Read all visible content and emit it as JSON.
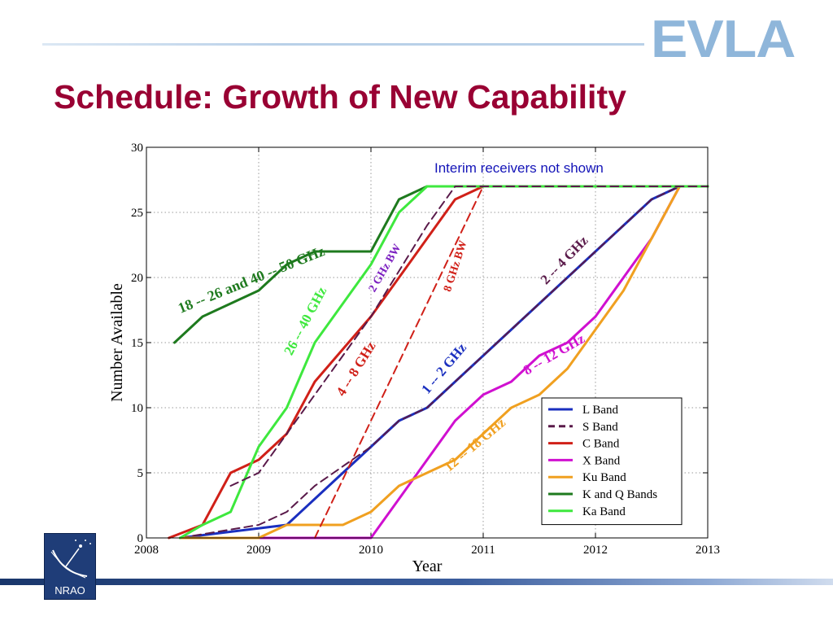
{
  "slide": {
    "title": "Schedule: Growth of New Capability",
    "logo_text": "EVLA",
    "footer_logo_text": "NRAO"
  },
  "chart_data": {
    "type": "line",
    "xlabel": "Year",
    "ylabel": "Number Available",
    "xlim": [
      2008,
      2013
    ],
    "ylim": [
      0,
      30
    ],
    "xticks": [
      2008,
      2009,
      2010,
      2011,
      2012,
      2013
    ],
    "yticks": [
      0,
      5,
      10,
      15,
      20,
      25,
      30
    ],
    "grid": true,
    "legend_position": "bottom-right",
    "note": "Interim receivers not shown",
    "series": [
      {
        "name": "L Band",
        "color": "#1a2fbf",
        "dash": "solid",
        "x": [
          2008.3,
          2009.25,
          2010.0,
          2010.25,
          2010.5,
          2011.0,
          2011.5,
          2012.0,
          2012.5,
          2012.75,
          2013.0
        ],
        "y": [
          0,
          1,
          7,
          9,
          10,
          14,
          18,
          22,
          26,
          27,
          27
        ]
      },
      {
        "name": "S Band",
        "color": "#5a1a4a",
        "dash": "dashed",
        "x": [
          2008.3,
          2009.0,
          2009.25,
          2009.5,
          2010.0,
          2010.25,
          2010.5,
          2011.0,
          2011.5,
          2012.0,
          2012.5,
          2012.75,
          2013.0
        ],
        "y": [
          0,
          1,
          2,
          4,
          7,
          9,
          10,
          14,
          18,
          22,
          26,
          27,
          27
        ]
      },
      {
        "name": "C Band",
        "color": "#d02018",
        "dash": "solid",
        "x": [
          2008.2,
          2008.5,
          2008.75,
          2009.0,
          2009.25,
          2009.5,
          2010.0,
          2010.5,
          2010.75,
          2011.0,
          2013.0
        ],
        "y": [
          0,
          1,
          5,
          6,
          8,
          12,
          17,
          23,
          26,
          27,
          27
        ]
      },
      {
        "name": "X Band",
        "color": "#d010d0",
        "dash": "solid",
        "x": [
          2008.3,
          2010.0,
          2010.5,
          2010.75,
          2011.0,
          2011.25,
          2011.5,
          2011.75,
          2012.0,
          2012.25,
          2012.5,
          2012.75,
          2013.0
        ],
        "y": [
          0,
          0,
          6,
          9,
          11,
          12,
          14,
          15,
          17,
          20,
          23,
          27,
          27
        ]
      },
      {
        "name": "Ku Band",
        "color": "#f0a020",
        "dash": "solid",
        "x": [
          2008.3,
          2009.0,
          2009.25,
          2009.75,
          2010.0,
          2010.25,
          2010.5,
          2010.75,
          2011.0,
          2011.25,
          2011.5,
          2011.75,
          2012.0,
          2012.25,
          2012.5,
          2012.75,
          2013.0
        ],
        "y": [
          0,
          0,
          1,
          1,
          2,
          4,
          5,
          6,
          8,
          10,
          11,
          13,
          16,
          19,
          23,
          27,
          27
        ]
      },
      {
        "name": "K and Q Bands",
        "color": "#1e7a1e",
        "dash": "solid",
        "x": [
          2008.25,
          2008.5,
          2008.75,
          2009.0,
          2009.25,
          2009.5,
          2010.0,
          2010.25,
          2010.5,
          2013.0
        ],
        "y": [
          15,
          17,
          18,
          19,
          21,
          22,
          22,
          26,
          27,
          27
        ]
      },
      {
        "name": "Ka Band",
        "color": "#3ee83e",
        "dash": "solid",
        "x": [
          2008.3,
          2008.5,
          2008.75,
          2009.0,
          2009.25,
          2009.5,
          2010.0,
          2010.25,
          2010.5,
          2013.0
        ],
        "y": [
          0,
          1,
          2,
          7,
          10,
          15,
          21,
          25,
          27,
          27
        ]
      },
      {
        "name": "",
        "color": "#5a1a4a",
        "dash": "dashed",
        "x": [
          2008.75,
          2009.0,
          2009.25,
          2009.5,
          2010.0,
          2010.5,
          2010.75,
          2013.0
        ],
        "y": [
          4,
          5,
          8,
          11,
          17,
          24,
          27,
          27
        ]
      },
      {
        "name": "",
        "color": "#d02018",
        "dash": "dashed",
        "x": [
          2009.5,
          2010.0,
          2010.5,
          2011.0
        ],
        "y": [
          0,
          9,
          18,
          27
        ]
      }
    ],
    "annotations": [
      {
        "text": "18 -- 26 and 40 -- 50 GHz",
        "color": "#1e7a1e",
        "x": 2008.95,
        "y": 19.5,
        "angle": -22,
        "size": 18
      },
      {
        "text": "26 -- 40 GHz",
        "color": "#3ee83e",
        "x": 2009.45,
        "y": 16.5,
        "angle": -62,
        "size": 17
      },
      {
        "text": "2 GHz BW",
        "color": "#7b1fc0",
        "x": 2010.15,
        "y": 20.6,
        "angle": -60,
        "size": 14
      },
      {
        "text": "8 GHz BW",
        "color": "#d02018",
        "x": 2010.78,
        "y": 20.8,
        "angle": -72,
        "size": 14
      },
      {
        "text": "4 -- 8 GHz",
        "color": "#d02018",
        "x": 2009.9,
        "y": 12.8,
        "angle": -58,
        "size": 17
      },
      {
        "text": "1 -- 2 GHz",
        "color": "#1a2fbf",
        "x": 2010.68,
        "y": 12.8,
        "angle": -50,
        "size": 17
      },
      {
        "text": "2 -- 4 GHz",
        "color": "#5a1a4a",
        "x": 2011.75,
        "y": 21.1,
        "angle": -46,
        "size": 17
      },
      {
        "text": "8 -- 12 GHz",
        "color": "#d010d0",
        "x": 2011.65,
        "y": 13.8,
        "angle": -30,
        "size": 17
      },
      {
        "text": "12 -- 18 GHz",
        "color": "#f0a020",
        "x": 2010.95,
        "y": 6.9,
        "angle": -40,
        "size": 17
      }
    ]
  }
}
